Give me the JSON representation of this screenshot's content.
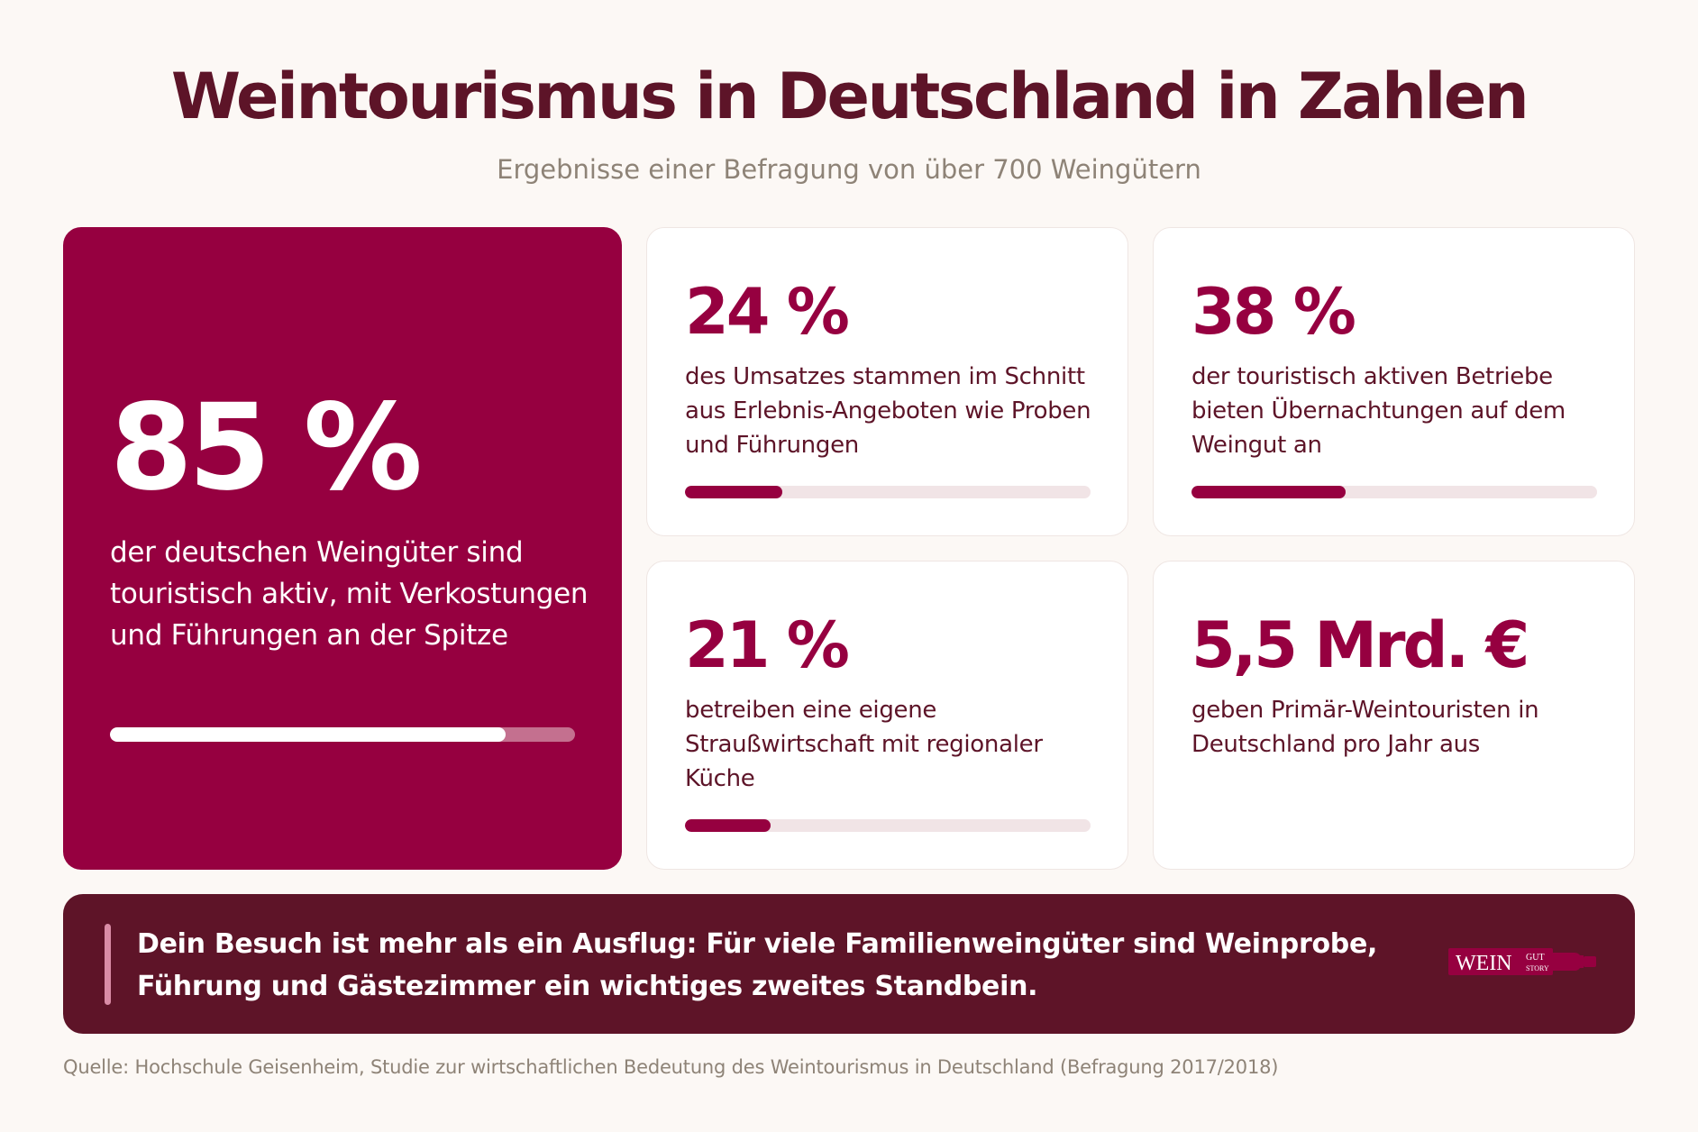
{
  "header": {
    "title": "Weintourismus in Deutschland in Zahlen",
    "subtitle": "Ergebnisse einer Befragung von über 700 Weingütern"
  },
  "hero": {
    "value": "85 %",
    "description": "der deutschen Weingüter sind touristisch aktiv, mit Verkostungen und Führungen an der Spitze",
    "progress_percent": 85
  },
  "stats": [
    {
      "value": "24 %",
      "description": "des Umsatzes stammen im Schnitt aus Erlebnis-Angeboten wie Proben und Führungen",
      "progress_percent": 24
    },
    {
      "value": "38 %",
      "description": "der touristisch aktiven Betriebe bieten Übernachtungen auf dem Weingut an",
      "progress_percent": 38
    },
    {
      "value": "21 %",
      "description": "betreiben eine eigene Straußwirtschaft mit regionaler Küche",
      "progress_percent": 21
    },
    {
      "value": "5,5 Mrd. €",
      "description": "geben Primär-Weintouristen in Deutschland pro Jahr aus"
    }
  ],
  "banner": {
    "text": "Dein Besuch ist mehr als ein Ausflug: Für viele Familienweingüter sind Weinprobe, Führung und Gästezimmer ein wichtiges zweites Standbein."
  },
  "logo": {
    "word": "WEIN",
    "top": "GUT",
    "bottom": "STORY"
  },
  "footer": {
    "source": "Quelle: Hochschule Geisenheim, Studie zur wirtschaftlichen Bedeutung des Weintourismus in Deutschland (Befragung 2017/2018)"
  },
  "colors": {
    "accent": "#960040",
    "dark": "#5e1428",
    "background": "#fcf8f5",
    "muted": "#8e8377"
  }
}
